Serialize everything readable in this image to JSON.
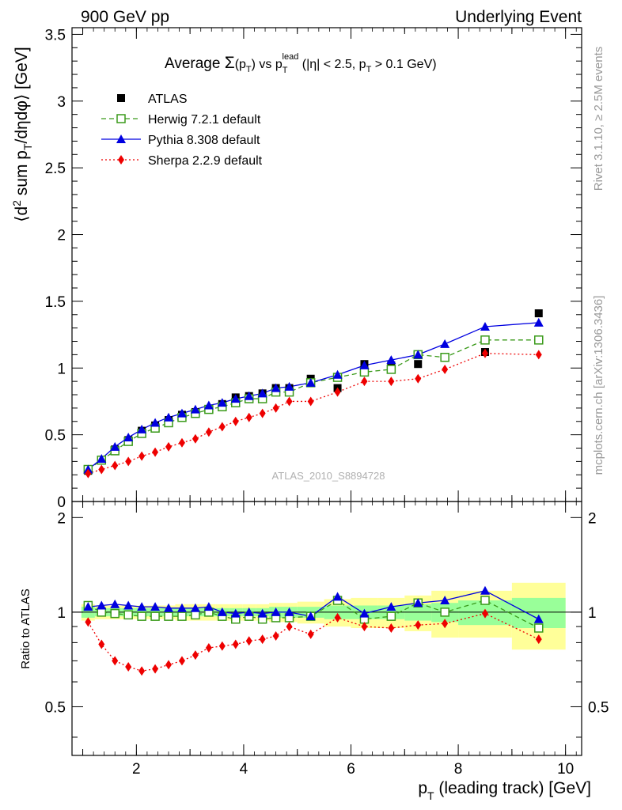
{
  "header": {
    "left": "900 GeV pp",
    "right": "Underlying Event"
  },
  "side": {
    "rivet": "Rivet 3.1.10, ≥ 2.5M events",
    "mcplots": "mcplots.cern.ch [arXiv:1306.3436]"
  },
  "watermark": "ATLAS_2010_S8894728",
  "colors": {
    "atlas": "#000000",
    "herwig": "#3a9a1a",
    "pythia": "#0000e0",
    "sherpa": "#ee0000",
    "band_outer": "#ffff99",
    "band_inner": "#99ff99"
  },
  "chart_data": [
    {
      "type": "line",
      "panel": "main",
      "title": "Average Σ(p_T) vs p_T^lead (|η| < 2.5, p_T > 0.1 GeV)",
      "xlabel": "p_T (leading track) [GeV]",
      "ylabel": "⟨d² sum p_T/dηdφ⟩ [GeV]",
      "xlim": [
        0.8,
        10.3
      ],
      "ylim": [
        0,
        3.55
      ],
      "xticks": [
        "2",
        "4",
        "6",
        "8",
        "10"
      ],
      "yticks": [
        "0",
        "0.5",
        "1",
        "1.5",
        "2",
        "2.5",
        "3",
        "3.5"
      ],
      "legend_position": "top-left",
      "x": [
        1.1,
        1.35,
        1.6,
        1.85,
        2.1,
        2.35,
        2.6,
        2.85,
        3.1,
        3.35,
        3.6,
        3.85,
        4.1,
        4.35,
        4.6,
        4.85,
        5.25,
        5.75,
        6.25,
        6.75,
        7.25,
        7.75,
        8.5,
        9.5
      ],
      "series": [
        {
          "name": "ATLAS",
          "marker": "square-filled",
          "line": "none",
          "values": [
            0.23,
            0.31,
            0.39,
            0.46,
            0.53,
            0.57,
            0.61,
            0.65,
            0.67,
            0.69,
            0.73,
            0.78,
            0.79,
            0.81,
            0.85,
            0.85,
            0.92,
            0.85,
            1.03,
            1.02,
            1.03,
            1.08,
            1.12,
            1.41
          ]
        },
        {
          "name": "Herwig 7.2.1 default",
          "marker": "square-open",
          "line": "dashed",
          "values": [
            0.24,
            0.31,
            0.38,
            0.45,
            0.51,
            0.55,
            0.59,
            0.63,
            0.66,
            0.69,
            0.71,
            0.74,
            0.77,
            0.77,
            0.82,
            0.82,
            0.89,
            0.93,
            0.97,
            0.99,
            1.1,
            1.08,
            1.21,
            1.21
          ]
        },
        {
          "name": "Pythia 8.308 default",
          "marker": "triangle",
          "line": "solid",
          "values": [
            0.24,
            0.32,
            0.41,
            0.48,
            0.54,
            0.59,
            0.63,
            0.66,
            0.69,
            0.72,
            0.74,
            0.77,
            0.79,
            0.81,
            0.85,
            0.86,
            0.89,
            0.95,
            1.02,
            1.06,
            1.1,
            1.18,
            1.31,
            1.34
          ]
        },
        {
          "name": "Sherpa 2.2.9 default",
          "marker": "diamond",
          "line": "dotted",
          "values": [
            0.21,
            0.24,
            0.27,
            0.3,
            0.34,
            0.37,
            0.41,
            0.44,
            0.47,
            0.52,
            0.56,
            0.6,
            0.63,
            0.66,
            0.7,
            0.75,
            0.75,
            0.82,
            0.9,
            0.9,
            0.92,
            0.99,
            1.11,
            1.1
          ]
        }
      ]
    },
    {
      "type": "line",
      "panel": "ratio",
      "ylabel": "Ratio to ATLAS",
      "ylim": [
        0.35,
        2.25
      ],
      "yticks": [
        "0.5",
        "1",
        "2"
      ],
      "xlim": [
        0.8,
        10.3
      ],
      "x": [
        1.1,
        1.35,
        1.6,
        1.85,
        2.1,
        2.35,
        2.6,
        2.85,
        3.1,
        3.35,
        3.6,
        3.85,
        4.1,
        4.35,
        4.6,
        4.85,
        5.25,
        5.75,
        6.25,
        6.75,
        7.25,
        7.75,
        8.5,
        9.5
      ],
      "bands": {
        "edges": [
          0.975,
          1.225,
          1.475,
          1.725,
          1.975,
          2.225,
          2.475,
          2.725,
          2.975,
          3.225,
          3.475,
          3.725,
          3.975,
          4.225,
          4.475,
          4.725,
          5.0,
          5.5,
          6.0,
          6.5,
          7.0,
          7.5,
          8.0,
          9.0,
          10.0
        ],
        "inner_half_width": [
          0.04,
          0.03,
          0.03,
          0.03,
          0.03,
          0.03,
          0.03,
          0.03,
          0.03,
          0.03,
          0.03,
          0.03,
          0.03,
          0.03,
          0.04,
          0.04,
          0.04,
          0.05,
          0.05,
          0.05,
          0.06,
          0.07,
          0.09,
          0.11
        ],
        "outer_half_width": [
          0.06,
          0.05,
          0.05,
          0.05,
          0.05,
          0.05,
          0.05,
          0.06,
          0.06,
          0.06,
          0.06,
          0.06,
          0.06,
          0.06,
          0.07,
          0.07,
          0.08,
          0.1,
          0.11,
          0.11,
          0.13,
          0.17,
          0.17,
          0.24
        ]
      },
      "series": [
        {
          "name": "Herwig 7.2.1 default",
          "values": [
            1.05,
            1.0,
            0.99,
            0.98,
            0.97,
            0.97,
            0.97,
            0.97,
            0.98,
            1.0,
            0.97,
            0.95,
            0.97,
            0.95,
            0.96,
            0.96,
            0.97,
            1.09,
            0.95,
            0.97,
            1.07,
            1.0,
            1.09,
            0.89
          ]
        },
        {
          "name": "Pythia 8.308 default",
          "values": [
            1.04,
            1.05,
            1.06,
            1.05,
            1.04,
            1.04,
            1.03,
            1.03,
            1.03,
            1.04,
            1.0,
            0.99,
            1.0,
            0.99,
            1.0,
            1.0,
            0.97,
            1.12,
            0.99,
            1.04,
            1.07,
            1.09,
            1.17,
            0.95
          ]
        },
        {
          "name": "Sherpa 2.2.9 default",
          "values": [
            0.93,
            0.79,
            0.7,
            0.67,
            0.65,
            0.66,
            0.68,
            0.7,
            0.73,
            0.77,
            0.78,
            0.79,
            0.81,
            0.82,
            0.84,
            0.9,
            0.85,
            0.96,
            0.9,
            0.89,
            0.91,
            0.92,
            0.99,
            0.82
          ]
        }
      ]
    }
  ]
}
